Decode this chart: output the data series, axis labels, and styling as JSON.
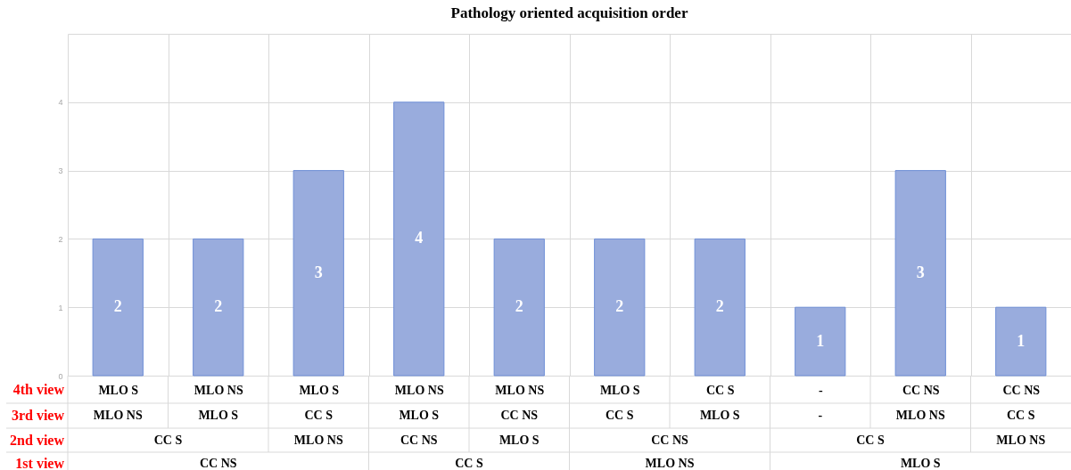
{
  "chart_data": {
    "type": "bar",
    "title": "Pathology oriented acquisition order",
    "categories": [
      "MLO S",
      "MLO NS",
      "MLO S",
      "MLO NS",
      "MLO NS",
      "MLO S",
      "CC S",
      "-",
      "CC NS",
      "CC NS"
    ],
    "values": [
      2,
      2,
      3,
      4,
      2,
      2,
      2,
      1,
      3,
      1
    ],
    "color": "#99acdd",
    "ylim": [
      0,
      5
    ],
    "yticks": [
      0,
      1,
      2,
      3,
      4,
      {
        "value": 5,
        "label": null
      }
    ],
    "grid": true,
    "data_labels": true,
    "annotations": [
      "4th view",
      "3rd view",
      "MLO NS",
      "MLO S",
      "CC S",
      "MLO S",
      "CC NS",
      "CC S",
      "MLO S",
      "-",
      "MLO NS",
      "CC S",
      "2nd view",
      "CC S",
      "MLO NS",
      "CC NS",
      "MLO S",
      "CC NS",
      "CC S",
      "MLO NS",
      "1st view",
      "CC NS",
      "CC S",
      "MLO NS",
      "MLO S"
    ]
  }
}
